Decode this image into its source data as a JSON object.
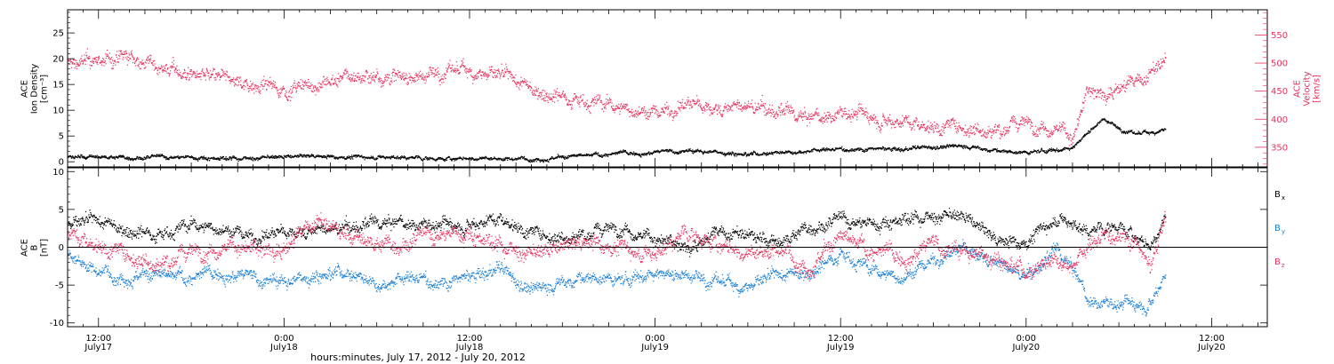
{
  "figure": {
    "xaxis_title": "hours:minutes, July 17, 2012 - July 20, 2012",
    "x_ticks": [
      {
        "hour": 12,
        "time": "12:00",
        "date": "July17"
      },
      {
        "hour": 24,
        "time": "0:00",
        "date": "July18"
      },
      {
        "hour": 36,
        "time": "12:00",
        "date": "July18"
      },
      {
        "hour": 48,
        "time": "0:00",
        "date": "July19"
      },
      {
        "hour": 60,
        "time": "12:00",
        "date": "July19"
      },
      {
        "hour": 72,
        "time": "0:00",
        "date": "July20"
      },
      {
        "hour": 84,
        "time": "12:00",
        "date": "July20"
      }
    ],
    "xlim_hours_from_july17_0000": [
      10.0,
      87.6
    ]
  },
  "colors": {
    "black": "#000000",
    "pink": "#e8305c",
    "blue": "#1a7fd6"
  },
  "chart_data": [
    {
      "type": "scatter",
      "panel": "top",
      "ylabel_left": [
        "ACE",
        "Ion Density",
        "[cm⁻³]"
      ],
      "ylabel_right": [
        "ACE",
        "Velocity",
        "[km/s]"
      ],
      "ylim_left": [
        -1,
        29.5
      ],
      "yticks_left": [
        0,
        5,
        10,
        15,
        20,
        25
      ],
      "ylim_right": [
        315,
        595
      ],
      "yticks_right": [
        350,
        400,
        450,
        500,
        550
      ],
      "x_unit": "hours from July 17, 2012 00:00",
      "series": [
        {
          "axis": "right",
          "color": "pink",
          "noise": 12,
          "x": [
            10,
            12,
            14,
            16,
            18,
            20,
            22,
            24,
            26,
            28,
            30,
            32,
            34,
            36,
            38,
            40,
            42,
            44,
            46,
            48,
            50,
            52,
            54,
            56,
            58,
            60,
            62,
            64,
            66,
            68,
            70,
            72,
            74,
            75,
            76,
            77,
            78,
            79,
            80,
            81
          ],
          "y": [
            500,
            505,
            510,
            495,
            480,
            470,
            465,
            455,
            460,
            475,
            480,
            475,
            485,
            490,
            475,
            455,
            445,
            432,
            420,
            412,
            428,
            420,
            422,
            412,
            400,
            412,
            410,
            400,
            390,
            388,
            382,
            395,
            390,
            365,
            450,
            445,
            460,
            465,
            480,
            505
          ]
        },
        {
          "axis": "left",
          "color": "black",
          "noise": 0.35,
          "x": [
            10,
            14,
            18,
            22,
            26,
            30,
            34,
            38,
            42,
            44,
            46,
            48,
            50,
            52,
            54,
            56,
            58,
            60,
            62,
            64,
            66,
            68,
            70,
            72,
            74,
            75,
            76,
            77,
            78,
            79,
            80,
            81
          ],
          "y": [
            1.0,
            1.0,
            0.9,
            0.8,
            1.2,
            1.0,
            0.7,
            0.7,
            0.9,
            1.3,
            1.8,
            2.0,
            2.2,
            2.0,
            1.6,
            2.0,
            2.3,
            2.5,
            2.6,
            2.4,
            3.0,
            3.2,
            2.2,
            1.8,
            2.4,
            3.0,
            6.0,
            8.5,
            6.5,
            5.5,
            5.8,
            6.5
          ]
        }
      ]
    },
    {
      "type": "scatter",
      "panel": "bottom",
      "ylabel_left": [
        "ACE",
        "B",
        "[nT]"
      ],
      "ylim": [
        -10.5,
        10.5
      ],
      "yticks": [
        -10,
        -5,
        0,
        5,
        10
      ],
      "zero_line": true,
      "legend": {
        "placement": "right",
        "items": [
          {
            "label": "B",
            "sub": "x",
            "color": "black"
          },
          {
            "label": "B",
            "sub": "y",
            "color": "blue"
          },
          {
            "label": "B",
            "sub": "z",
            "color": "pink"
          }
        ]
      },
      "series": [
        {
          "name": "Bx",
          "color": "black",
          "noise": 0.8,
          "x": [
            10,
            12,
            14,
            16,
            18,
            20,
            22,
            24,
            26,
            28,
            30,
            32,
            34,
            36,
            38,
            40,
            42,
            44,
            46,
            48,
            50,
            52,
            54,
            56,
            58,
            60,
            62,
            64,
            66,
            68,
            70,
            72,
            74,
            76,
            78,
            80,
            81
          ],
          "y": [
            3.0,
            3.2,
            2.5,
            2.0,
            3.0,
            2.5,
            1.5,
            2.0,
            2.2,
            2.5,
            3.0,
            3.2,
            3.0,
            3.5,
            4.0,
            2.0,
            1.5,
            2.0,
            3.0,
            1.0,
            0.0,
            2.0,
            1.5,
            0.5,
            3.0,
            3.5,
            3.0,
            4.0,
            4.2,
            4.0,
            1.0,
            1.0,
            4.0,
            2.0,
            3.0,
            0.0,
            4.0
          ]
        },
        {
          "name": "By",
          "color": "blue",
          "noise": 0.8,
          "x": [
            10,
            12,
            14,
            16,
            18,
            20,
            22,
            24,
            26,
            28,
            30,
            32,
            34,
            36,
            38,
            40,
            42,
            44,
            46,
            48,
            50,
            52,
            54,
            56,
            58,
            60,
            62,
            64,
            66,
            68,
            70,
            72,
            74,
            75,
            76,
            78,
            80,
            81
          ],
          "y": [
            -1.0,
            -3.0,
            -3.5,
            -4.0,
            -4.0,
            -3.0,
            -4.0,
            -4.5,
            -3.5,
            -3.0,
            -4.5,
            -4.0,
            -4.5,
            -4.0,
            -3.0,
            -5.5,
            -4.5,
            -4.0,
            -4.5,
            -3.0,
            -3.5,
            -4.5,
            -5.0,
            -4.0,
            -3.0,
            -0.5,
            -3.0,
            -4.0,
            -1.5,
            0.0,
            -2.0,
            -4.0,
            -0.5,
            -3.0,
            -7.0,
            -7.5,
            -7.0,
            -3.0
          ]
        },
        {
          "name": "Bz",
          "color": "pink",
          "noise": 1.0,
          "x": [
            10,
            12,
            14,
            16,
            18,
            20,
            22,
            24,
            26,
            28,
            30,
            32,
            34,
            36,
            38,
            40,
            42,
            44,
            46,
            48,
            50,
            52,
            54,
            56,
            58,
            60,
            62,
            64,
            66,
            68,
            70,
            72,
            74,
            75,
            76,
            77,
            78,
            79,
            80,
            81
          ],
          "y": [
            2.0,
            0.5,
            -1.0,
            -2.0,
            -0.5,
            0.5,
            -0.5,
            0.0,
            3.5,
            1.5,
            0.5,
            1.0,
            1.5,
            2.0,
            0.5,
            -1.0,
            0.0,
            1.0,
            0.0,
            -1.0,
            2.0,
            0.5,
            -1.0,
            0.0,
            -2.0,
            1.0,
            -0.5,
            -1.0,
            0.5,
            -0.5,
            -1.0,
            -3.0,
            -1.0,
            -2.0,
            0.0,
            1.5,
            2.0,
            1.0,
            -3.0,
            4.0
          ]
        }
      ]
    }
  ]
}
